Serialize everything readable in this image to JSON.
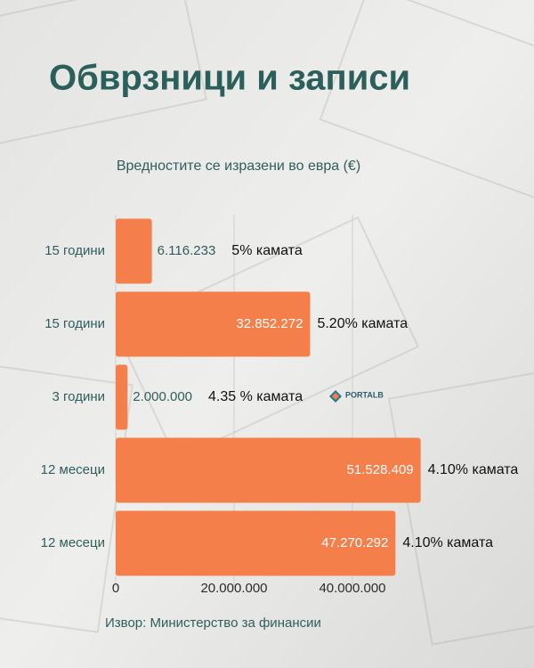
{
  "chart_data": {
    "type": "bar",
    "orientation": "horizontal",
    "title": "Обврзници и записи",
    "subtitle": "Вредностите се изразени во евра (€)",
    "source": "Извор: Министерство за финансии",
    "categories": [
      "15 години",
      "15 години",
      "3 години",
      "12 месеци",
      "12 месеци"
    ],
    "values": [
      6116233,
      32852272,
      2000000,
      51528409,
      47270292
    ],
    "value_labels": [
      "6.116.233",
      "32.852.272",
      "2.000.000",
      "51.528.409",
      "47.270.292"
    ],
    "annotations": [
      "5% камата",
      "5.20% камата",
      "4.35 % камата",
      "4.10% камата",
      "4.10% камата"
    ],
    "color": "#f47f4b",
    "xlim": [
      0,
      60000000
    ],
    "xticks": [
      0,
      {
        "value": 20000000,
        "label": "20.000.000"
      },
      {
        "value": 40000000,
        "label": "40.000.000"
      }
    ],
    "grid": true
  },
  "logo": {
    "text": "PORTALB"
  }
}
